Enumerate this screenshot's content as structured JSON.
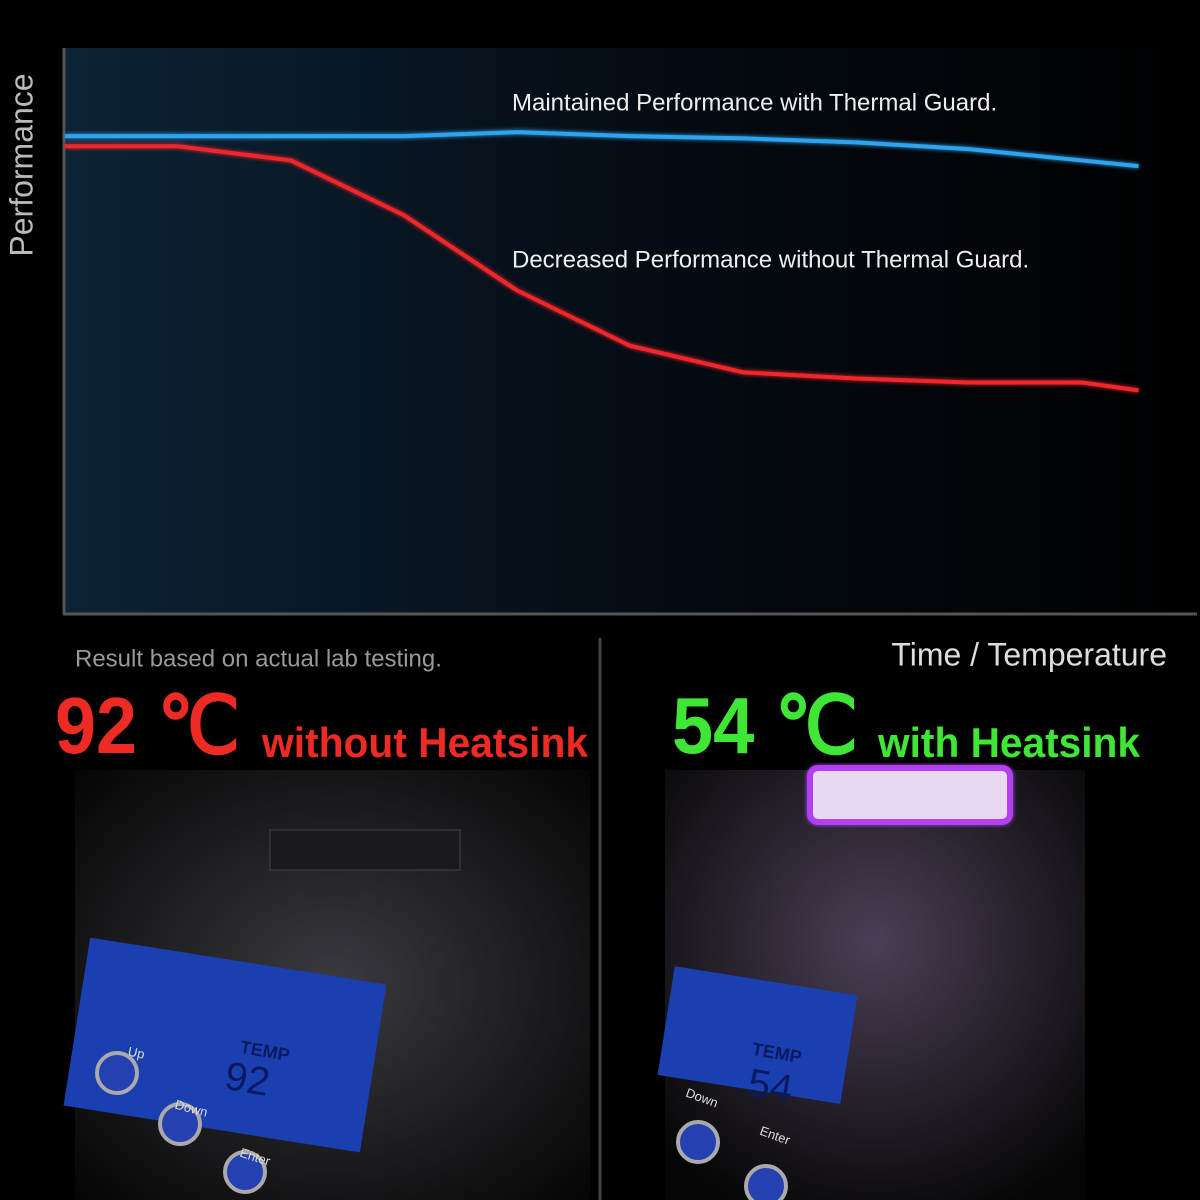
{
  "chart_data": {
    "type": "line",
    "ylabel": "Performance",
    "xlabel": "Time / Temperature",
    "xlim": [
      0,
      100
    ],
    "ylim": [
      0,
      100
    ],
    "x": [
      0,
      10,
      20,
      30,
      40,
      50,
      60,
      70,
      80,
      90,
      95
    ],
    "series": [
      {
        "name": "Maintained Performance with Thermal Guard.",
        "color": "#2fa4f0",
        "values": [
          84.4,
          84.4,
          84.4,
          84.4,
          85.1,
          84.4,
          84.0,
          83.3,
          82.1,
          80.1,
          79.1
        ]
      },
      {
        "name": "Decreased Performance without Thermal Guard.",
        "color": "#f0282a",
        "values": [
          82.6,
          82.6,
          80.1,
          70.4,
          57.1,
          47.3,
          42.6,
          41.5,
          40.8,
          40.8,
          39.4
        ]
      }
    ]
  },
  "note": "Result based on actual lab testing.",
  "panels": [
    {
      "temperature": "92 ℃",
      "caption": "without Heatsink",
      "color": "#ee2a24",
      "lcd_label": "TEMP",
      "lcd_value": "92",
      "buttons": [
        "Up",
        "Down",
        "Enter"
      ]
    },
    {
      "temperature": "54 ℃",
      "caption": "with Heatsink",
      "color": "#3fe635",
      "lcd_label": "TEMP",
      "lcd_value": "54",
      "buttons": [
        "Down",
        "Enter"
      ]
    }
  ]
}
